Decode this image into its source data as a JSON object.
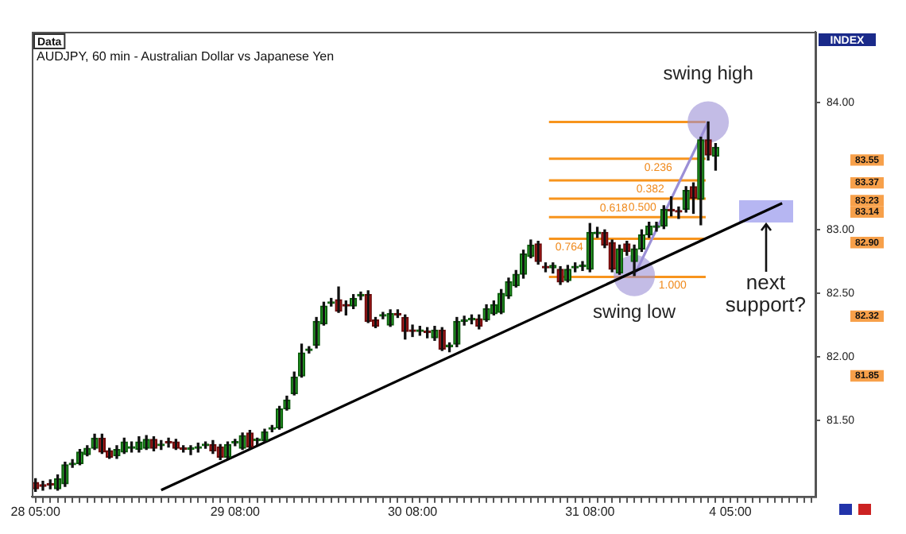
{
  "chart_data": {
    "type": "candlestick",
    "title": "AUDJPY, 60 min - Australian Dollar vs Japanese Yen",
    "annotations": [
      "Data",
      "INDEX",
      {
        "text": "swing high",
        "y": 83.85
      },
      {
        "text": "swing low",
        "y": 82.64
      },
      {
        "text": "next support?",
        "y": 83.15
      },
      {
        "text": "0.236",
        "y": 83.56
      },
      {
        "text": "0.382",
        "y": 83.39
      },
      {
        "text": "0.500",
        "y": 83.245
      },
      {
        "text": "0.618",
        "y": 83.1
      },
      {
        "text": "0.764",
        "y": 82.93
      },
      {
        "text": "1.000",
        "y": 82.63
      }
    ],
    "categories": [
      "28 05:00",
      null,
      null,
      null,
      null,
      null,
      null,
      null,
      null,
      null,
      null,
      null,
      null,
      null,
      null,
      null,
      null,
      null,
      null,
      null,
      null,
      null,
      null,
      null,
      null,
      null,
      null,
      "29 08:00",
      null,
      null,
      null,
      null,
      null,
      null,
      null,
      null,
      null,
      null,
      null,
      null,
      null,
      null,
      null,
      null,
      null,
      null,
      null,
      null,
      null,
      null,
      null,
      "30 08:00",
      null,
      null,
      null,
      null,
      null,
      null,
      null,
      null,
      null,
      null,
      null,
      null,
      null,
      null,
      null,
      null,
      null,
      null,
      null,
      null,
      null,
      null,
      null,
      "31 08:00",
      null,
      null,
      null,
      null,
      null,
      null,
      null,
      null,
      null,
      null,
      null,
      null,
      null,
      null,
      null,
      null,
      null,
      null,
      "4 05:00",
      null,
      null,
      null,
      null,
      null,
      null,
      null,
      null,
      null,
      null,
      null
    ],
    "ohlc": [
      [
        81.01,
        81.04,
        80.94,
        80.96
      ],
      [
        80.99,
        81.02,
        80.95,
        80.98
      ],
      [
        81.0,
        81.03,
        80.96,
        80.99
      ],
      [
        80.96,
        81.07,
        80.95,
        81.04
      ],
      [
        81.0,
        81.17,
        80.98,
        81.15
      ],
      [
        81.15,
        81.19,
        81.13,
        81.16
      ],
      [
        81.16,
        81.27,
        81.15,
        81.25
      ],
      [
        81.23,
        81.3,
        81.22,
        81.28
      ],
      [
        81.28,
        81.39,
        81.27,
        81.36
      ],
      [
        81.36,
        81.39,
        81.24,
        81.25
      ],
      [
        81.26,
        81.28,
        81.2,
        81.21
      ],
      [
        81.22,
        81.3,
        81.2,
        81.27
      ],
      [
        81.25,
        81.36,
        81.24,
        81.33
      ],
      [
        81.28,
        81.33,
        81.25,
        81.29
      ],
      [
        81.27,
        81.37,
        81.25,
        81.33
      ],
      [
        81.28,
        81.38,
        81.27,
        81.35
      ],
      [
        81.35,
        81.37,
        81.26,
        81.28
      ],
      [
        81.3,
        81.34,
        81.27,
        81.31
      ],
      [
        81.33,
        81.36,
        81.29,
        81.32
      ],
      [
        81.33,
        81.35,
        81.27,
        81.28
      ],
      [
        81.28,
        81.3,
        81.25,
        81.27
      ],
      [
        81.27,
        81.3,
        81.23,
        81.28
      ],
      [
        81.28,
        81.32,
        81.25,
        81.29
      ],
      [
        81.3,
        81.33,
        81.28,
        81.31
      ],
      [
        81.31,
        81.34,
        81.24,
        81.26
      ],
      [
        81.29,
        81.31,
        81.19,
        81.21
      ],
      [
        81.21,
        81.33,
        81.2,
        81.31
      ],
      [
        81.32,
        81.35,
        81.3,
        81.33
      ],
      [
        81.28,
        81.4,
        81.27,
        81.38
      ],
      [
        81.4,
        81.42,
        81.28,
        81.29
      ],
      [
        81.34,
        81.36,
        81.31,
        81.35
      ],
      [
        81.34,
        81.43,
        81.33,
        81.41
      ],
      [
        81.43,
        81.46,
        81.41,
        81.44
      ],
      [
        81.44,
        81.61,
        81.43,
        81.59
      ],
      [
        81.59,
        81.69,
        81.58,
        81.66
      ],
      [
        81.71,
        81.88,
        81.7,
        81.84
      ],
      [
        81.85,
        82.1,
        81.84,
        82.03
      ],
      [
        82.05,
        82.08,
        82.03,
        82.06
      ],
      [
        82.09,
        82.31,
        82.07,
        82.28
      ],
      [
        82.26,
        82.43,
        82.25,
        82.4
      ],
      [
        82.42,
        82.46,
        82.4,
        82.43
      ],
      [
        82.45,
        82.55,
        82.35,
        82.36
      ],
      [
        82.41,
        82.44,
        82.33,
        82.4
      ],
      [
        82.4,
        82.49,
        82.38,
        82.46
      ],
      [
        82.48,
        82.51,
        82.45,
        82.49
      ],
      [
        82.49,
        82.52,
        82.27,
        82.28
      ],
      [
        82.29,
        82.31,
        82.23,
        82.24
      ],
      [
        82.32,
        82.35,
        82.3,
        82.33
      ],
      [
        82.25,
        82.37,
        82.24,
        82.34
      ],
      [
        82.34,
        82.37,
        82.31,
        82.33
      ],
      [
        82.31,
        82.33,
        82.14,
        82.2
      ],
      [
        82.21,
        82.25,
        82.16,
        82.2
      ],
      [
        82.2,
        82.24,
        82.17,
        82.21
      ],
      [
        82.2,
        82.23,
        82.15,
        82.19
      ],
      [
        82.15,
        82.24,
        82.13,
        82.21
      ],
      [
        82.21,
        82.23,
        82.05,
        82.06
      ],
      [
        82.08,
        82.11,
        82.04,
        82.09
      ],
      [
        82.1,
        82.31,
        82.08,
        82.28
      ],
      [
        82.28,
        82.32,
        82.25,
        82.29
      ],
      [
        82.29,
        82.33,
        82.26,
        82.3
      ],
      [
        82.3,
        82.33,
        82.22,
        82.24
      ],
      [
        82.29,
        82.41,
        82.28,
        82.38
      ],
      [
        82.34,
        82.44,
        82.33,
        82.41
      ],
      [
        82.35,
        82.53,
        82.34,
        82.5
      ],
      [
        82.48,
        82.62,
        82.46,
        82.59
      ],
      [
        82.56,
        82.68,
        82.55,
        82.65
      ],
      [
        82.65,
        82.84,
        82.62,
        82.81
      ],
      [
        82.79,
        82.92,
        82.78,
        82.88
      ],
      [
        82.89,
        82.91,
        82.73,
        82.75
      ],
      [
        82.71,
        82.74,
        82.67,
        82.7
      ],
      [
        82.7,
        82.74,
        82.66,
        82.72
      ],
      [
        82.69,
        82.71,
        82.57,
        82.59
      ],
      [
        82.6,
        82.72,
        82.59,
        82.69
      ],
      [
        82.7,
        82.74,
        82.67,
        82.71
      ],
      [
        82.71,
        82.75,
        82.68,
        82.72
      ],
      [
        82.69,
        83.05,
        82.67,
        82.98
      ],
      [
        82.97,
        83.02,
        82.94,
        82.98
      ],
      [
        82.98,
        83.0,
        82.86,
        82.88
      ],
      [
        82.9,
        82.92,
        82.67,
        82.69
      ],
      [
        82.66,
        82.88,
        82.65,
        82.85
      ],
      [
        82.89,
        82.91,
        82.8,
        82.83
      ],
      [
        82.75,
        82.88,
        82.64,
        82.85
      ],
      [
        82.85,
        83.0,
        82.83,
        82.96
      ],
      [
        82.96,
        83.06,
        82.94,
        83.03
      ],
      [
        83.02,
        83.06,
        82.99,
        83.03
      ],
      [
        83.03,
        83.19,
        83.01,
        83.16
      ],
      [
        83.16,
        83.26,
        83.11,
        83.15
      ],
      [
        83.15,
        83.18,
        83.09,
        83.14
      ],
      [
        83.16,
        83.34,
        83.14,
        83.31
      ],
      [
        83.34,
        83.37,
        83.13,
        83.25
      ],
      [
        83.24,
        83.73,
        83.04,
        83.71
      ],
      [
        83.71,
        83.85,
        83.55,
        83.59
      ],
      [
        83.58,
        83.68,
        83.47,
        83.65
      ],
      null,
      null,
      null,
      null,
      null,
      null,
      null,
      null,
      null,
      null,
      null,
      null,
      null
    ],
    "series": [
      {
        "type": "line",
        "color": "#000000",
        "values": [
          null,
          null,
          null,
          null,
          null,
          null,
          null,
          null,
          null,
          null,
          null,
          null,
          null,
          null,
          null,
          null,
          null,
          80.95,
          null,
          null,
          null,
          null,
          null,
          null,
          null,
          null,
          null,
          null,
          null,
          null,
          null,
          null,
          null,
          null,
          null,
          null,
          null,
          null,
          null,
          null,
          null,
          null,
          null,
          null,
          null,
          null,
          null,
          null,
          null,
          null,
          null,
          null,
          null,
          null,
          null,
          null,
          null,
          null,
          null,
          null,
          null,
          null,
          null,
          null,
          null,
          null,
          null,
          null,
          null,
          null,
          null,
          null,
          null,
          null,
          null,
          null,
          null,
          null,
          null,
          null,
          null,
          null,
          null,
          null,
          null,
          null,
          null,
          null,
          null,
          null,
          null,
          null,
          null,
          null,
          null,
          null,
          null,
          null,
          null,
          null,
          null,
          83.21,
          null,
          null,
          null,
          null
        ]
      },
      {
        "type": "line",
        "color": "#9b8fd6",
        "marker": "circle",
        "values": [
          null,
          null,
          null,
          null,
          null,
          null,
          null,
          null,
          null,
          null,
          null,
          null,
          null,
          null,
          null,
          null,
          null,
          null,
          null,
          null,
          null,
          null,
          null,
          null,
          null,
          null,
          null,
          null,
          null,
          null,
          null,
          null,
          null,
          null,
          null,
          null,
          null,
          null,
          null,
          null,
          null,
          null,
          null,
          null,
          null,
          null,
          null,
          null,
          null,
          null,
          null,
          null,
          null,
          null,
          null,
          null,
          null,
          null,
          null,
          null,
          null,
          null,
          null,
          null,
          null,
          null,
          null,
          null,
          null,
          null,
          null,
          null,
          null,
          null,
          null,
          null,
          null,
          null,
          null,
          null,
          null,
          82.64,
          null,
          null,
          null,
          null,
          null,
          null,
          null,
          null,
          null,
          83.85,
          null,
          null,
          null,
          null,
          null,
          null,
          null,
          null,
          null,
          null,
          null,
          null,
          null,
          null
        ]
      }
    ],
    "ylim": [
      80.9,
      84.56
    ],
    "yticks": [
      {
        "value": 81.5,
        "label": "81.50"
      },
      {
        "value": 82,
        "label": "82.00"
      },
      {
        "value": 82.5,
        "label": "82.50"
      },
      {
        "value": 83,
        "label": "83.00"
      },
      {
        "value": 84,
        "label": "84.00"
      }
    ],
    "y2lim": [
      80.9,
      84.56
    ],
    "y2ticks": [
      {
        "value": 81.85,
        "label": "81.85"
      },
      {
        "value": 82.32,
        "label": "82.32"
      },
      {
        "value": 82.9,
        "label": "82.90"
      },
      {
        "value": 83.14,
        "label": "83.14"
      },
      {
        "value": 83.23,
        "label": "83.23"
      },
      {
        "value": 83.37,
        "label": "83.37"
      },
      {
        "value": 83.55,
        "label": "83.55"
      }
    ],
    "ref_lines": [
      {
        "axis": "y",
        "value": 83.85,
        "color": "#f7941d"
      },
      {
        "axis": "y",
        "value": 83.56,
        "color": "#f7941d"
      },
      {
        "axis": "y",
        "value": 83.39,
        "color": "#f7941d"
      },
      {
        "axis": "y",
        "value": 83.245,
        "color": "#f7941d"
      },
      {
        "axis": "y",
        "value": 83.1,
        "color": "#f7941d"
      },
      {
        "axis": "y",
        "value": 82.93,
        "color": "#f7941d"
      },
      {
        "axis": "y",
        "value": 82.63,
        "color": "#f7941d"
      }
    ],
    "grid": false,
    "legend": false
  }
}
